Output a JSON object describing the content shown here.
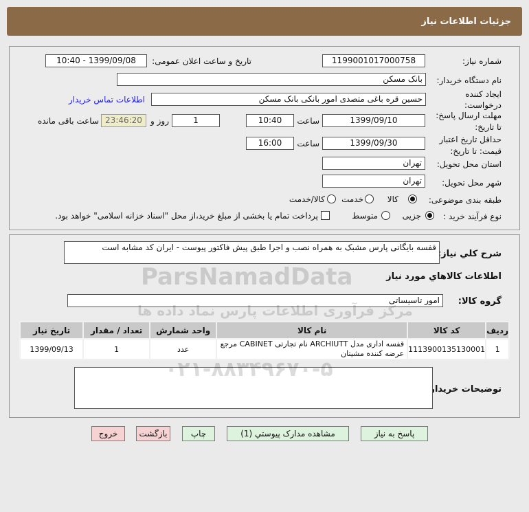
{
  "header": {
    "title": "جزئیات اطلاعات نیاز"
  },
  "fields": {
    "need_number_label": "شماره نیاز:",
    "need_number": "1199001017000758",
    "announce_label": "تاریخ و ساعت اعلان عمومی:",
    "announce": "1399/09/08 - 10:40",
    "buyer_label": "نام دستگاه خریدار:",
    "buyer": "بانک مسکن",
    "creator_label_1": "ایجاد کننده",
    "creator_label_2": "درخواست:",
    "creator": "حسین  قره باغی متصدی امور بانکی بانک مسکن",
    "contact_link": "اطلاعات تماس خریدار",
    "deadline_label_1": "مهلت ارسال پاسخ:",
    "deadline_label_2": "تا تاریخ:",
    "deadline_date": "1399/09/10",
    "time_label": "ساعت",
    "deadline_time": "10:40",
    "days": "1",
    "days_label": "روز و",
    "remaining": "23:46:20",
    "remaining_label": "ساعت باقی مانده",
    "validity_label_1": "حداقل تاریخ اعتبار",
    "validity_label_2": "قیمت: تا تاریخ:",
    "validity_date": "1399/09/30",
    "validity_time": "16:00",
    "province_label": "استان محل تحویل:",
    "province": "تهران",
    "city_label": "شهر محل تحویل:",
    "city": "تهران",
    "category_label": "طبقه بندی موضوعی:",
    "category_options": [
      "کالا",
      "خدمت",
      "کالا/خدمت"
    ],
    "category_selected": "کالا",
    "process_label": "نوع فرآیند خرید :",
    "process_options": [
      "جزیی",
      "متوسط"
    ],
    "process_selected": "جزیی",
    "payment_note": "پرداخت تمام یا بخشی از مبلغ خرید،از محل \"اسناد خزانه اسلامی\" خواهد بود."
  },
  "details": {
    "description_label": "شرح کلي نياز:",
    "description": "قفسه بایگانی پارس مشبک به همراه نصب و اجرا طبق پیش فاکتور پیوست - ایران کد مشابه است",
    "goods_info_title": "اطلاعات کالاهاي مورد نياز",
    "group_label": "گروه کالا:",
    "group": "امور تاسیساتی",
    "table": {
      "headers": [
        "ردیف",
        "کد کالا",
        "نام کالا",
        "واحد شمارش",
        "تعداد / مقدار",
        "تاریخ نیاز"
      ],
      "rows": [
        [
          "1",
          "1113900135130001",
          "قفسه اداری مدل ARCHIUTT نام تجارتی CABINET مرجع عرضه کننده مشیتان",
          "عدد",
          "1",
          "1399/09/13"
        ]
      ]
    },
    "buyer_notes_label": "توضیحات خریدار:",
    "buyer_notes": ""
  },
  "buttons": {
    "reply": "پاسخ به نیاز",
    "attachments": "مشاهده مدارک پیوستي (1)",
    "print": "چاپ",
    "back": "بازگشت",
    "exit": "خروج"
  },
  "watermark": {
    "text": "ParsNamadData",
    "subtext": "مرکز فرآوری اطلاعات پارس نماد داده ها",
    "phone": "۰۲۱-۸۸۳۴۹۶۷۰-۵"
  },
  "colors": {
    "header": "#8b6a48",
    "link": "#1a1aff",
    "remaining_bg": "#efedc8",
    "button_green": "#ddf3dd",
    "button_red": "#f6d2d2"
  }
}
